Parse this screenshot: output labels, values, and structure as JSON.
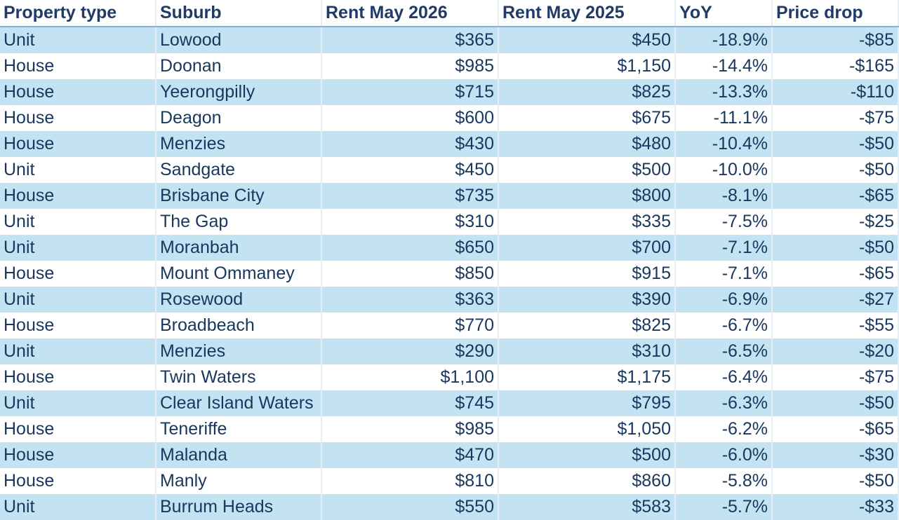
{
  "table": {
    "header": [
      "Property type",
      "Suburb",
      "Rent May 2026",
      "Rent May 2025",
      "YoY",
      "Price drop"
    ],
    "rows": [
      [
        "Unit",
        "Lowood",
        "$365",
        "$450",
        "-18.9%",
        "-$85"
      ],
      [
        "House",
        "Doonan",
        "$985",
        "$1,150",
        "-14.4%",
        "-$165"
      ],
      [
        "House",
        "Yeerongpilly",
        "$715",
        "$825",
        "-13.3%",
        "-$110"
      ],
      [
        "House",
        "Deagon",
        "$600",
        "$675",
        "-11.1%",
        "-$75"
      ],
      [
        "House",
        "Menzies",
        "$430",
        "$480",
        "-10.4%",
        "-$50"
      ],
      [
        "Unit",
        "Sandgate",
        "$450",
        "$500",
        "-10.0%",
        "-$50"
      ],
      [
        "House",
        "Brisbane City",
        "$735",
        "$800",
        "-8.1%",
        "-$65"
      ],
      [
        "Unit",
        "The Gap",
        "$310",
        "$335",
        "-7.5%",
        "-$25"
      ],
      [
        "Unit",
        "Moranbah",
        "$650",
        "$700",
        "-7.1%",
        "-$50"
      ],
      [
        "House",
        "Mount Ommaney",
        "$850",
        "$915",
        "-7.1%",
        "-$65"
      ],
      [
        "Unit",
        "Rosewood",
        "$363",
        "$390",
        "-6.9%",
        "-$27"
      ],
      [
        "House",
        "Broadbeach",
        "$770",
        "$825",
        "-6.7%",
        "-$55"
      ],
      [
        "Unit",
        "Menzies",
        "$290",
        "$310",
        "-6.5%",
        "-$20"
      ],
      [
        "House",
        "Twin Waters",
        "$1,100",
        "$1,175",
        "-6.4%",
        "-$75"
      ],
      [
        "Unit",
        "Clear Island Waters",
        "$745",
        "$795",
        "-6.3%",
        "-$50"
      ],
      [
        "House",
        "Teneriffe",
        "$985",
        "$1,050",
        "-6.2%",
        "-$65"
      ],
      [
        "House",
        "Malanda",
        "$470",
        "$500",
        "-6.0%",
        "-$30"
      ],
      [
        "House",
        "Manly",
        "$810",
        "$860",
        "-5.8%",
        "-$50"
      ],
      [
        "Unit",
        "Burrum Heads",
        "$550",
        "$583",
        "-5.7%",
        "-$33"
      ]
    ]
  }
}
